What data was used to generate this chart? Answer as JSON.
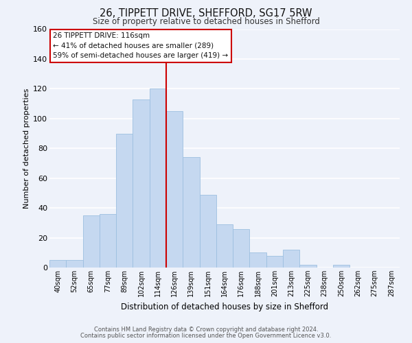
{
  "title": "26, TIPPETT DRIVE, SHEFFORD, SG17 5RW",
  "subtitle": "Size of property relative to detached houses in Shefford",
  "xlabel": "Distribution of detached houses by size in Shefford",
  "ylabel": "Number of detached properties",
  "bar_labels": [
    "40sqm",
    "52sqm",
    "65sqm",
    "77sqm",
    "89sqm",
    "102sqm",
    "114sqm",
    "126sqm",
    "139sqm",
    "151sqm",
    "164sqm",
    "176sqm",
    "188sqm",
    "201sqm",
    "213sqm",
    "225sqm",
    "238sqm",
    "250sqm",
    "262sqm",
    "275sqm",
    "287sqm"
  ],
  "bar_heights": [
    5,
    5,
    35,
    36,
    90,
    113,
    120,
    105,
    74,
    49,
    29,
    26,
    10,
    8,
    12,
    2,
    0,
    2,
    0,
    0,
    0
  ],
  "bar_color": "#c5d8f0",
  "bar_edge_color": "#9dbfe0",
  "vline_color": "#cc0000",
  "annotation_title": "26 TIPPETT DRIVE: 116sqm",
  "annotation_line1": "← 41% of detached houses are smaller (289)",
  "annotation_line2": "59% of semi-detached houses are larger (419) →",
  "annotation_box_color": "#ffffff",
  "annotation_box_edgecolor": "#cc0000",
  "ylim": [
    0,
    160
  ],
  "yticks": [
    0,
    20,
    40,
    60,
    80,
    100,
    120,
    140,
    160
  ],
  "footer1": "Contains HM Land Registry data © Crown copyright and database right 2024.",
  "footer2": "Contains public sector information licensed under the Open Government Licence v3.0.",
  "background_color": "#eef2fa"
}
